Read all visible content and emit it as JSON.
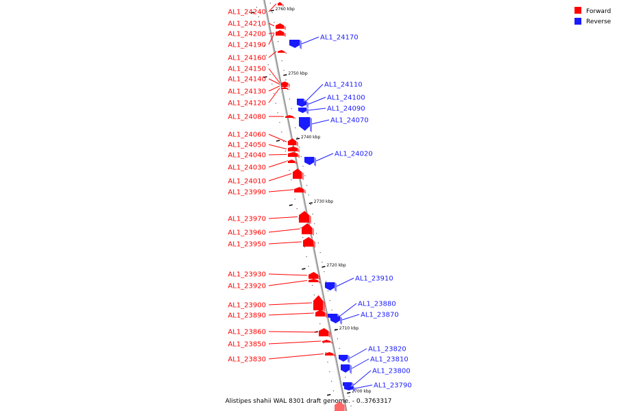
{
  "colors": {
    "forward": "#ff0000",
    "reverse": "#1a1aff",
    "backbone": "#999999",
    "tick": "#000000"
  },
  "legend": {
    "forward": "Forward",
    "reverse": "Reverse"
  },
  "caption": "Alistipes shahii WAL 8301 draft genome. - 0..3763317",
  "ticks": [
    "2760 kbp",
    "2750 kbp",
    "2740 kbp",
    "2730 kbp",
    "2720 kbp",
    "2710 kbp",
    "2700 kbp"
  ],
  "genes_forward": [
    "AL1_24240",
    "AL1_24210",
    "AL1_24200",
    "AL1_24190",
    "AL1_24160",
    "AL1_24150",
    "AL1_24140",
    "AL1_24130",
    "AL1_24120",
    "AL1_24080",
    "AL1_24060",
    "AL1_24050",
    "AL1_24040",
    "AL1_24030",
    "AL1_24010",
    "AL1_23990",
    "AL1_23970",
    "AL1_23960",
    "AL1_23950",
    "AL1_23930",
    "AL1_23920",
    "AL1_23900",
    "AL1_23890",
    "AL1_23860",
    "AL1_23850",
    "AL1_23830"
  ],
  "genes_reverse": [
    "AL1_24170",
    "AL1_24110",
    "AL1_24100",
    "AL1_24090",
    "AL1_24070",
    "AL1_24020",
    "AL1_23910",
    "AL1_23880",
    "AL1_23870",
    "AL1_23820",
    "AL1_23810",
    "AL1_23800",
    "AL1_23790"
  ]
}
